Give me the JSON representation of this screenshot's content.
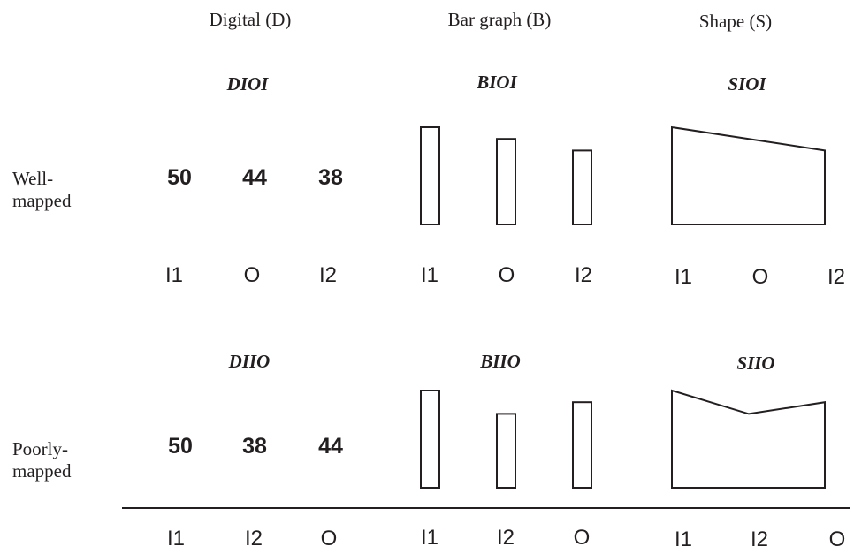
{
  "headers": {
    "digital": "Digital (D)",
    "bar": "Bar graph (B)",
    "shape": "Shape (S)"
  },
  "rows": {
    "well": {
      "label_line1": "Well-",
      "label_line2": "mapped",
      "codes": {
        "digital": "DIOI",
        "bar": "BIOI",
        "shape": "SIOI"
      },
      "digits": [
        "50",
        "44",
        "38"
      ],
      "digital_labels": [
        "I1",
        "O",
        "I2"
      ],
      "bar_labels": [
        "I1",
        "O",
        "I2"
      ],
      "shape_labels": [
        "I1",
        "O",
        "I2"
      ],
      "bar_values": [
        50,
        44,
        38
      ],
      "shape_values": [
        50,
        44,
        38
      ]
    },
    "poor": {
      "label_line1": "Poorly-",
      "label_line2": "mapped",
      "codes": {
        "digital": "DIIO",
        "bar": "BIIO",
        "shape": "SIIO"
      },
      "digits": [
        "50",
        "38",
        "44"
      ],
      "digital_labels": [
        "I1",
        "I2",
        "O"
      ],
      "bar_labels": [
        "I1",
        "I2",
        "O"
      ],
      "shape_labels": [
        "I1",
        "I2",
        "O"
      ],
      "bar_values": [
        50,
        38,
        44
      ],
      "shape_values": [
        50,
        38,
        44
      ]
    }
  }
}
